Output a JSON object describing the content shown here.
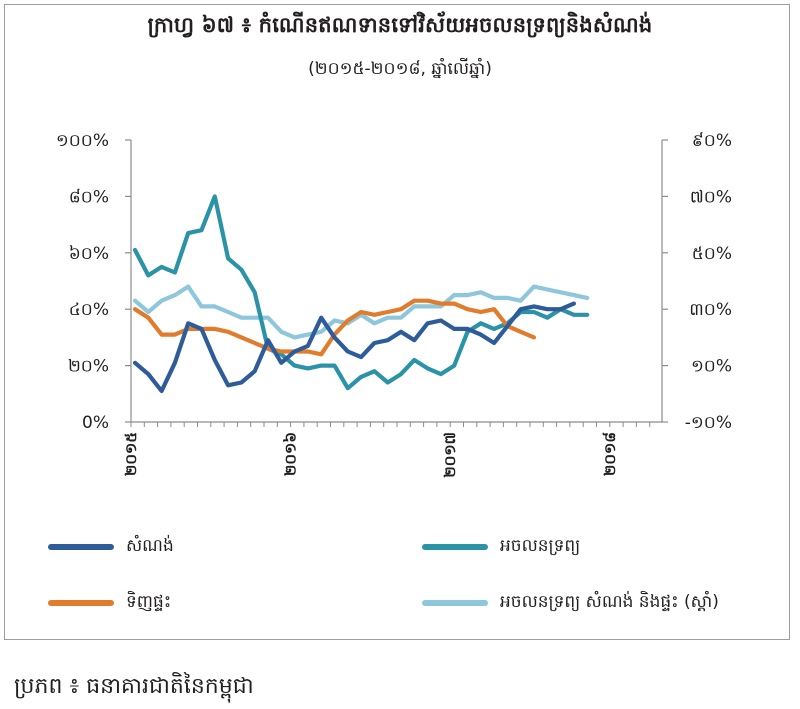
{
  "title": "ក្រាហ្វ ៦៧ ៖ កំណើនឥណទានទៅវិស័យអចលនទ្រព្យនិងសំណង់",
  "subtitle": "(២០១៥-២០១៨, ឆ្នាំលើឆ្នាំ)",
  "source": "ប្រភព ៖ ធនាគារជាតិនៃកម្ពុជា",
  "chart_data": {
    "type": "line",
    "left_axis": {
      "ticks": [
        0,
        20,
        40,
        60,
        80,
        100
      ],
      "tick_labels": [
        "0%",
        "២០%",
        "៤០%",
        "៦០%",
        "៨០%",
        "១០០%"
      ],
      "ylim": [
        0,
        100
      ]
    },
    "right_axis": {
      "ticks": [
        -10,
        10,
        30,
        50,
        70,
        90
      ],
      "tick_labels": [
        "-១០%",
        "១០%",
        "៣០%",
        "៥០%",
        "៧០%",
        "៩០%"
      ],
      "ylim": [
        -10,
        90
      ]
    },
    "x_tick_labels": [
      "២០១៥",
      "២០១៦",
      "២០១៧",
      "២០១៨"
    ],
    "x_tick_index": [
      0,
      12,
      24,
      36
    ],
    "legend_position": "bottom",
    "grid": false,
    "series": [
      {
        "name": "សំណង់",
        "axis": "left",
        "color": "#2e5c9a",
        "values": [
          21,
          17,
          11,
          21,
          35,
          33,
          22,
          13,
          14,
          18,
          29,
          21,
          25,
          27,
          37,
          30,
          25,
          23,
          28,
          29,
          32,
          29,
          35,
          36,
          33,
          33,
          31,
          28,
          34,
          40,
          41,
          40,
          40,
          42
        ]
      },
      {
        "name": "អចលនទ្រព្យ",
        "axis": "right",
        "color": "#2b93a8",
        "values": [
          51,
          42,
          45,
          43,
          57,
          58,
          70,
          48,
          44,
          36,
          16,
          14,
          10,
          9,
          10,
          10,
          2,
          6,
          8,
          4,
          7,
          12,
          9,
          7,
          10,
          22,
          25,
          23,
          25,
          29,
          29,
          27,
          30,
          28,
          28
        ]
      },
      {
        "name": "ទិញផ្ទះ",
        "axis": "left",
        "color": "#e07c2c",
        "values": [
          40,
          37,
          31,
          31,
          33,
          33,
          33,
          32,
          30,
          28,
          26,
          25,
          25,
          25,
          24,
          31,
          36,
          39,
          38,
          39,
          40,
          43,
          43,
          42,
          42,
          40,
          39,
          40,
          34,
          32,
          30
        ]
      },
      {
        "name": "អចលនទ្រព្យ សំណង់ និងផ្ទះ (ស្ដាំ)",
        "axis": "right",
        "color": "#8ec6dc",
        "values": [
          33,
          29,
          33,
          35,
          38,
          31,
          31,
          29,
          27,
          27,
          27,
          22,
          20,
          21,
          22,
          26,
          25,
          28,
          25,
          27,
          27,
          31,
          31,
          31,
          35,
          35,
          36,
          34,
          34,
          33,
          38,
          37,
          36,
          35,
          34
        ]
      }
    ]
  }
}
